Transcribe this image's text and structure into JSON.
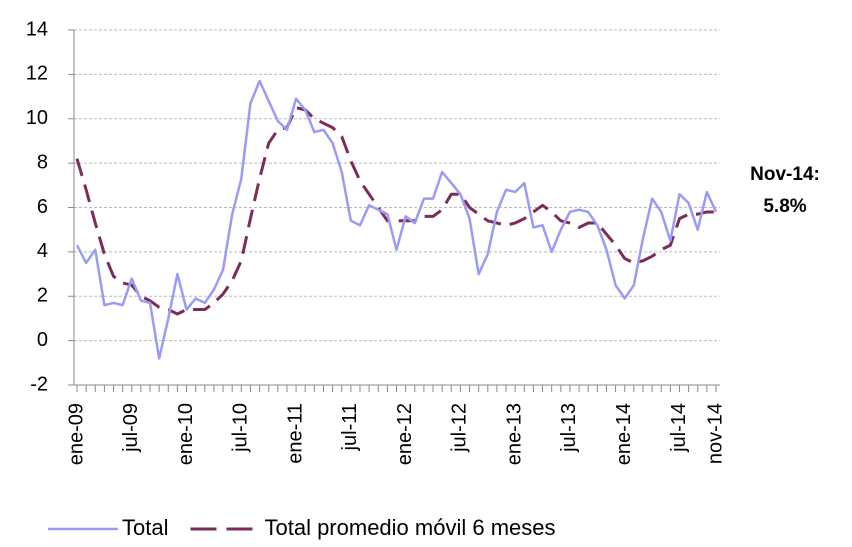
{
  "chart_data": {
    "type": "line",
    "categories": [
      "ene-09",
      null,
      null,
      null,
      null,
      null,
      "jul-09",
      null,
      null,
      null,
      null,
      null,
      "ene-10",
      null,
      null,
      null,
      null,
      null,
      "jul-10",
      null,
      null,
      null,
      null,
      null,
      "ene-11",
      null,
      null,
      null,
      null,
      null,
      "jul-11",
      null,
      null,
      null,
      null,
      null,
      "ene-12",
      null,
      null,
      null,
      null,
      null,
      "jul-12",
      null,
      null,
      null,
      null,
      null,
      "ene-13",
      null,
      null,
      null,
      null,
      null,
      "jul-13",
      null,
      null,
      null,
      null,
      null,
      "ene-14",
      null,
      null,
      null,
      null,
      null,
      "jul-14",
      null,
      null,
      null,
      "nov-14"
    ],
    "series": [
      {
        "name": "Total",
        "color": "#9b9bf5",
        "dash": false,
        "values": [
          4.3,
          3.5,
          4.1,
          1.6,
          1.7,
          1.6,
          2.8,
          1.8,
          1.7,
          -0.8,
          1.0,
          3.0,
          1.4,
          1.9,
          1.7,
          2.3,
          3.2,
          5.7,
          7.3,
          10.7,
          11.7,
          10.8,
          9.9,
          9.5,
          10.9,
          10.4,
          9.4,
          9.5,
          8.9,
          7.6,
          5.4,
          5.2,
          6.1,
          5.9,
          5.7,
          4.1,
          5.6,
          5.3,
          6.4,
          6.4,
          7.6,
          7.1,
          6.6,
          5.5,
          3.0,
          3.9,
          5.8,
          6.8,
          6.7,
          7.1,
          5.1,
          5.2,
          4.0,
          5.0,
          5.8,
          5.9,
          5.8,
          5.2,
          4.1,
          2.5,
          1.9,
          2.5,
          4.6,
          6.4,
          5.8,
          4.5,
          6.6,
          6.2,
          5.0,
          6.7,
          5.8
        ]
      },
      {
        "name": "Total promedio móvil 6 meses",
        "color": "#7b2c5a",
        "dash": true,
        "values": [
          8.2,
          6.8,
          5.3,
          3.9,
          2.9,
          2.6,
          2.5,
          2.0,
          1.8,
          1.5,
          1.4,
          1.2,
          1.4,
          1.4,
          1.4,
          1.7,
          2.1,
          2.7,
          3.6,
          5.5,
          7.3,
          8.9,
          9.5,
          9.6,
          10.5,
          10.4,
          10.0,
          9.8,
          9.6,
          9.2,
          8.1,
          7.2,
          6.6,
          6.0,
          5.4,
          5.4,
          5.4,
          5.4,
          5.6,
          5.6,
          5.9,
          6.6,
          6.6,
          6.0,
          5.7,
          5.4,
          5.3,
          5.2,
          5.3,
          5.5,
          5.8,
          6.1,
          5.8,
          5.4,
          5.3,
          5.1,
          5.3,
          5.3,
          4.8,
          4.3,
          3.7,
          3.5,
          3.6,
          3.8,
          4.1,
          4.3,
          5.5,
          5.7,
          5.7,
          5.8,
          5.8
        ]
      }
    ],
    "ylim": [
      -2,
      14
    ],
    "yticks": [
      -2,
      0,
      2,
      4,
      6,
      8,
      10,
      12,
      14
    ],
    "grid": true,
    "legend": "bottom",
    "annotation": [
      "Nov-14:",
      "5.8%"
    ],
    "annotation_color": "#1ba1e2"
  }
}
